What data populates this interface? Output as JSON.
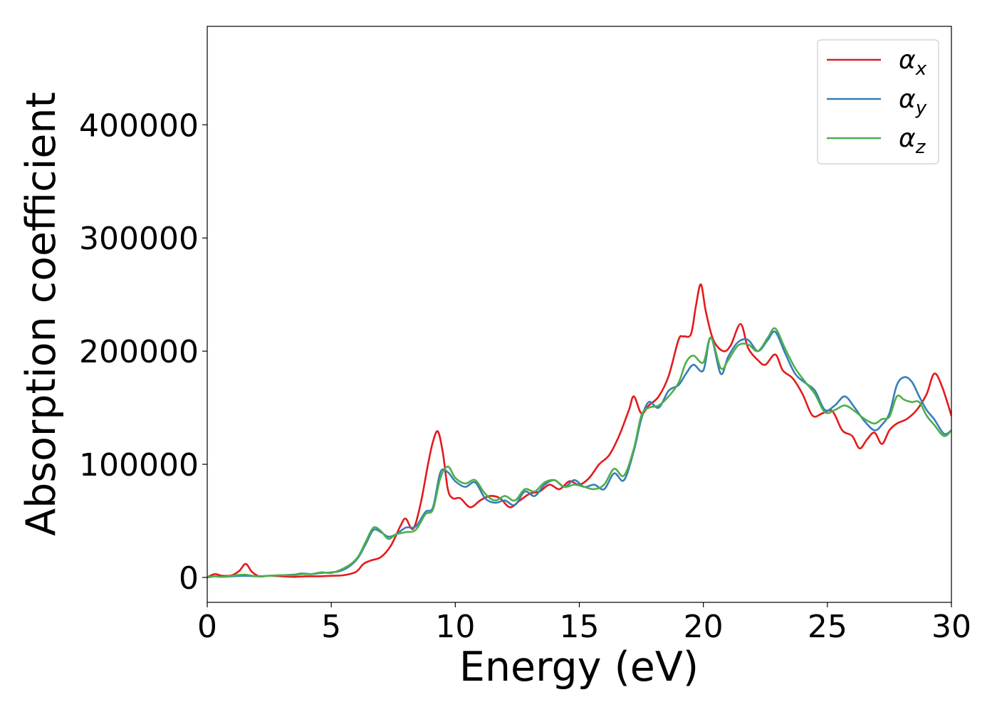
{
  "chart_data": {
    "type": "line",
    "title": "",
    "xlabel": "Energy (eV)",
    "ylabel": "Absorption coefficient",
    "xlim": [
      0,
      30
    ],
    "ylim": [
      -22000,
      487000
    ],
    "xticks": [
      0,
      5,
      10,
      15,
      20,
      25,
      30
    ],
    "xtick_labels": [
      "0",
      "5",
      "10",
      "15",
      "20",
      "25",
      "30"
    ],
    "yticks": [
      0,
      100000,
      200000,
      300000,
      400000
    ],
    "ytick_labels": [
      "0",
      "100000",
      "200000",
      "300000",
      "400000"
    ],
    "grid": false,
    "legend_position": "top-right",
    "series": [
      {
        "name": "α_x",
        "label_main": "α",
        "label_sub": "x",
        "color": "#e41a1c",
        "x": [
          0,
          0.3,
          0.6,
          1.0,
          1.3,
          1.55,
          1.8,
          2.1,
          2.5,
          3.0,
          3.5,
          4.0,
          4.5,
          5.0,
          5.5,
          6.0,
          6.3,
          6.6,
          7.0,
          7.4,
          7.8,
          8.0,
          8.3,
          8.6,
          8.9,
          9.1,
          9.3,
          9.5,
          9.7,
          9.9,
          10.2,
          10.6,
          11.0,
          11.4,
          11.8,
          12.2,
          12.6,
          13.0,
          13.4,
          13.8,
          14.2,
          14.6,
          15.0,
          15.4,
          15.8,
          16.2,
          16.6,
          17.0,
          17.2,
          17.5,
          17.8,
          18.2,
          18.6,
          19.0,
          19.2,
          19.5,
          19.7,
          19.9,
          20.1,
          20.4,
          20.8,
          21.1,
          21.5,
          21.8,
          22.2,
          22.5,
          22.9,
          23.2,
          23.6,
          24.0,
          24.4,
          24.8,
          25.2,
          25.6,
          26.0,
          26.3,
          26.6,
          26.9,
          27.2,
          27.5,
          27.8,
          28.2,
          28.6,
          29.0,
          29.3,
          29.6,
          30.0
        ],
        "y": [
          0,
          3000,
          1500,
          2000,
          6000,
          12000,
          5000,
          1000,
          1500,
          1000,
          500,
          1000,
          1000,
          1500,
          2000,
          5000,
          12000,
          15000,
          18000,
          28000,
          46000,
          52000,
          43000,
          65000,
          100000,
          120000,
          129000,
          110000,
          78000,
          70000,
          70000,
          62000,
          68000,
          72000,
          70000,
          62000,
          68000,
          74000,
          76000,
          82000,
          78000,
          85000,
          82000,
          88000,
          100000,
          108000,
          125000,
          148000,
          160000,
          145000,
          152000,
          160000,
          178000,
          210000,
          213000,
          215000,
          240000,
          259000,
          235000,
          210000,
          200000,
          205000,
          224000,
          203000,
          192000,
          188000,
          197000,
          183000,
          176000,
          162000,
          143000,
          145000,
          147000,
          130000,
          125000,
          114000,
          122000,
          128000,
          118000,
          130000,
          136000,
          140000,
          148000,
          162000,
          180000,
          170000,
          143000
        ]
      },
      {
        "name": "α_y",
        "label_main": "α",
        "label_sub": "y",
        "color": "#377eb8",
        "x": [
          0,
          0.3,
          0.6,
          1.0,
          1.5,
          2.0,
          2.5,
          3.0,
          3.5,
          3.8,
          4.2,
          4.6,
          5.0,
          5.4,
          5.8,
          6.1,
          6.4,
          6.7,
          7.0,
          7.3,
          7.6,
          8.0,
          8.4,
          8.8,
          9.1,
          9.4,
          9.7,
          10.0,
          10.4,
          10.8,
          11.2,
          11.6,
          12.0,
          12.4,
          12.8,
          13.2,
          13.6,
          14.0,
          14.4,
          14.8,
          15.2,
          15.6,
          16.0,
          16.4,
          16.8,
          17.2,
          17.5,
          17.8,
          18.2,
          18.6,
          19.0,
          19.3,
          19.6,
          20.0,
          20.3,
          20.7,
          21.0,
          21.4,
          21.8,
          22.2,
          22.6,
          22.9,
          23.3,
          23.7,
          24.1,
          24.5,
          24.9,
          25.3,
          25.7,
          26.1,
          26.5,
          26.9,
          27.2,
          27.5,
          27.8,
          28.1,
          28.4,
          28.7,
          29.0,
          29.3,
          29.7,
          30.0
        ],
        "y": [
          0,
          1000,
          500,
          1000,
          1500,
          1000,
          1500,
          2000,
          2500,
          3500,
          3000,
          4000,
          4500,
          6000,
          11000,
          18000,
          30000,
          42000,
          40000,
          36000,
          38000,
          44000,
          45000,
          58000,
          62000,
          93000,
          93000,
          85000,
          80000,
          84000,
          70000,
          66000,
          68000,
          64000,
          76000,
          72000,
          82000,
          86000,
          80000,
          86000,
          80000,
          82000,
          78000,
          92000,
          86000,
          112000,
          140000,
          155000,
          150000,
          165000,
          170000,
          180000,
          188000,
          183000,
          212000,
          180000,
          195000,
          208000,
          210000,
          200000,
          210000,
          217000,
          198000,
          180000,
          172000,
          165000,
          148000,
          152000,
          160000,
          150000,
          138000,
          130000,
          135000,
          145000,
          170000,
          177000,
          173000,
          160000,
          148000,
          140000,
          127000,
          130000
        ]
      },
      {
        "name": "α_z",
        "label_main": "α",
        "label_sub": "z",
        "color": "#4daf4a",
        "x": [
          0,
          0.3,
          0.6,
          1.0,
          1.5,
          2.0,
          2.5,
          3.0,
          3.5,
          3.8,
          4.2,
          4.6,
          5.0,
          5.4,
          5.8,
          6.1,
          6.4,
          6.7,
          7.0,
          7.3,
          7.6,
          8.0,
          8.4,
          8.8,
          9.1,
          9.4,
          9.7,
          10.0,
          10.4,
          10.8,
          11.2,
          11.6,
          12.0,
          12.4,
          12.8,
          13.2,
          13.6,
          14.0,
          14.4,
          14.8,
          15.2,
          15.6,
          16.0,
          16.4,
          16.8,
          17.2,
          17.5,
          17.8,
          18.2,
          18.6,
          19.0,
          19.3,
          19.6,
          20.0,
          20.3,
          20.7,
          21.0,
          21.4,
          21.8,
          22.2,
          22.6,
          22.9,
          23.3,
          23.7,
          24.1,
          24.5,
          24.9,
          25.3,
          25.7,
          26.1,
          26.5,
          26.9,
          27.2,
          27.5,
          27.8,
          28.1,
          28.4,
          28.7,
          29.0,
          29.3,
          29.7,
          30.0
        ],
        "y": [
          0,
          1000,
          500,
          1500,
          2500,
          1000,
          1500,
          2000,
          2000,
          3000,
          3000,
          4500,
          4000,
          7000,
          12000,
          19000,
          32000,
          44000,
          41000,
          34000,
          38000,
          40000,
          42000,
          56000,
          60000,
          88000,
          98000,
          88000,
          83000,
          86000,
          74000,
          68000,
          72000,
          68000,
          78000,
          76000,
          84000,
          86000,
          80000,
          82000,
          80000,
          78000,
          82000,
          96000,
          90000,
          114000,
          143000,
          150000,
          152000,
          160000,
          172000,
          190000,
          196000,
          190000,
          212000,
          185000,
          192000,
          205000,
          206000,
          200000,
          212000,
          220000,
          202000,
          185000,
          173000,
          162000,
          146000,
          148000,
          152000,
          147000,
          140000,
          136000,
          140000,
          142000,
          160000,
          157000,
          155000,
          155000,
          143000,
          135000,
          125000,
          130000
        ]
      }
    ]
  }
}
